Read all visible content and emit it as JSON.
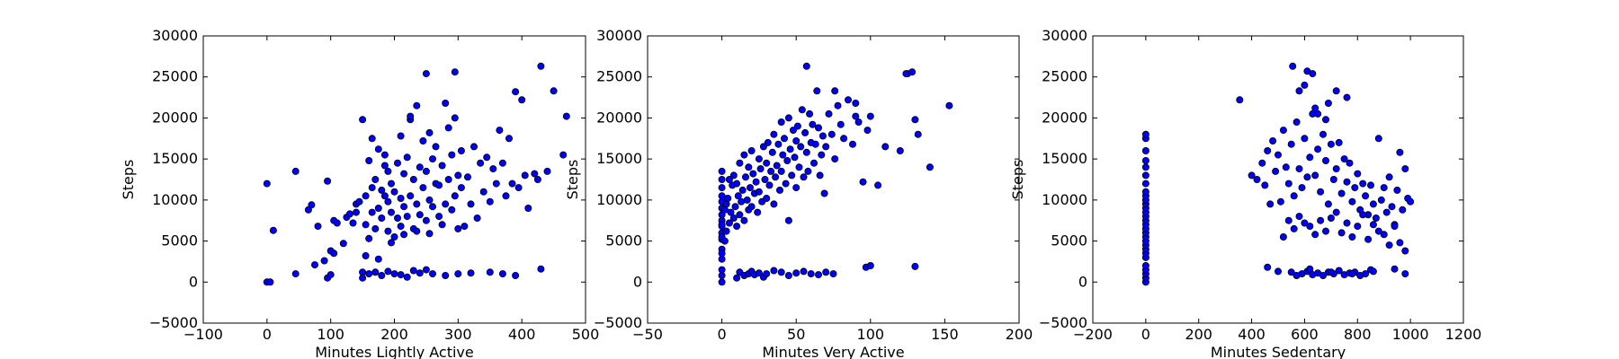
{
  "colors": {
    "marker_fill": "#0000ff",
    "marker_edge": "#000000",
    "background": "#ffffff",
    "axes": "#000000"
  },
  "chart_data": [
    {
      "type": "scatter",
      "xlabel": "Minutes Lightly Active",
      "ylabel": "Steps",
      "xlim": [
        -100,
        500
      ],
      "ylim": [
        -5000,
        30000
      ],
      "xticks": [
        -100,
        0,
        100,
        200,
        300,
        400,
        500
      ],
      "yticks": [
        -5000,
        0,
        5000,
        10000,
        15000,
        20000,
        25000,
        30000
      ],
      "grid": false,
      "x": [
        0,
        0,
        5,
        10,
        45,
        45,
        65,
        70,
        75,
        80,
        90,
        95,
        95,
        100,
        100,
        105,
        105,
        110,
        120,
        125,
        130,
        135,
        140,
        140,
        145,
        150,
        150,
        155,
        155,
        160,
        160,
        165,
        165,
        165,
        170,
        170,
        175,
        175,
        180,
        180,
        185,
        185,
        190,
        190,
        190,
        195,
        195,
        200,
        200,
        205,
        205,
        210,
        210,
        210,
        215,
        215,
        220,
        220,
        225,
        225,
        230,
        230,
        235,
        235,
        240,
        240,
        245,
        245,
        250,
        250,
        255,
        255,
        260,
        260,
        265,
        265,
        270,
        270,
        275,
        275,
        280,
        280,
        285,
        285,
        290,
        290,
        295,
        295,
        300,
        300,
        305,
        305,
        310,
        315,
        320,
        325,
        330,
        335,
        340,
        345,
        350,
        355,
        360,
        365,
        370,
        375,
        380,
        385,
        390,
        395,
        400,
        405,
        410,
        420,
        425,
        430,
        440,
        450,
        465,
        470,
        150,
        160,
        170,
        180,
        190,
        200,
        210,
        220,
        230,
        240,
        250,
        260,
        280,
        300,
        320,
        350,
        370,
        390,
        430,
        250,
        295,
        225,
        185,
        155,
        175,
        195,
        215,
        235,
        255
      ],
      "y": [
        0,
        12000,
        0,
        6300,
        1000,
        13500,
        8800,
        9400,
        2100,
        6800,
        2600,
        500,
        12300,
        3800,
        900,
        7500,
        3500,
        7200,
        4700,
        7900,
        8300,
        7200,
        8500,
        9500,
        9800,
        1200,
        19800,
        7000,
        10500,
        5300,
        14800,
        8500,
        11500,
        17500,
        6500,
        12500,
        9000,
        16200,
        7800,
        11200,
        10500,
        15500,
        6200,
        9800,
        13500,
        8500,
        12000,
        5500,
        11000,
        7800,
        14500,
        6800,
        10200,
        17800,
        9200,
        13200,
        8000,
        15200,
        10500,
        19800,
        6500,
        12500,
        9500,
        21500,
        8200,
        14000,
        11500,
        17200,
        7500,
        13500,
        10000,
        18200,
        9200,
        15000,
        12000,
        16500,
        8000,
        11800,
        7000,
        14200,
        9500,
        21800,
        12500,
        18800,
        8800,
        15500,
        10500,
        20000,
        6500,
        13000,
        11500,
        16000,
        6800,
        12800,
        9500,
        16500,
        7800,
        14500,
        11000,
        15200,
        9800,
        13800,
        12000,
        18500,
        14500,
        10500,
        17500,
        12000,
        23200,
        11500,
        22200,
        13000,
        9000,
        13200,
        12500,
        26300,
        13500,
        23300,
        15500,
        20200,
        500,
        1000,
        1200,
        800,
        1300,
        1000,
        900,
        600,
        1400,
        1100,
        1500,
        1000,
        800,
        1000,
        1100,
        1200,
        1000,
        800,
        1600,
        25400,
        25600,
        20200,
        14200,
        3200,
        2800,
        4800,
        5800,
        6200,
        5900
      ],
      "color": "#0000ff"
    },
    {
      "type": "scatter",
      "xlabel": "Minutes Very Active",
      "ylabel": "Steps",
      "xlim": [
        -50,
        200
      ],
      "ylim": [
        -5000,
        30000
      ],
      "xticks": [
        -50,
        0,
        50,
        100,
        150,
        200
      ],
      "yticks": [
        -5000,
        0,
        5000,
        10000,
        15000,
        20000,
        25000,
        30000
      ],
      "grid": false,
      "x": [
        0,
        0,
        0,
        0,
        0,
        0,
        0,
        0,
        0,
        0,
        0,
        0,
        0,
        0,
        0,
        0,
        0,
        0,
        0,
        2,
        2,
        3,
        3,
        4,
        5,
        5,
        6,
        7,
        8,
        8,
        9,
        10,
        10,
        11,
        12,
        12,
        13,
        14,
        15,
        15,
        16,
        17,
        18,
        18,
        19,
        20,
        20,
        21,
        22,
        23,
        24,
        25,
        25,
        26,
        27,
        28,
        29,
        30,
        30,
        31,
        32,
        33,
        34,
        35,
        35,
        36,
        37,
        38,
        39,
        40,
        40,
        41,
        42,
        43,
        44,
        45,
        45,
        46,
        47,
        48,
        49,
        50,
        50,
        51,
        52,
        53,
        54,
        55,
        56,
        57,
        58,
        59,
        60,
        61,
        62,
        63,
        64,
        65,
        66,
        67,
        68,
        69,
        70,
        72,
        74,
        76,
        78,
        80,
        82,
        85,
        88,
        90,
        92,
        95,
        98,
        100,
        105,
        110,
        120,
        125,
        130,
        132,
        140,
        153,
        10,
        12,
        15,
        18,
        20,
        22,
        25,
        28,
        30,
        35,
        40,
        45,
        50,
        55,
        60,
        65,
        70,
        75,
        97,
        100,
        130,
        57,
        76,
        90,
        124,
        128
      ],
      "y": [
        0,
        800,
        1500,
        2800,
        4000,
        5200,
        6000,
        6800,
        7500,
        8200,
        9000,
        9800,
        10500,
        11500,
        12500,
        13500,
        3500,
        5500,
        7000,
        5000,
        8800,
        6200,
        9500,
        10200,
        7200,
        12500,
        8500,
        11800,
        7800,
        13000,
        9200,
        6800,
        12000,
        10500,
        8200,
        14500,
        9800,
        11200,
        7500,
        15500,
        12800,
        10000,
        8800,
        14000,
        11500,
        9200,
        16000,
        13200,
        10800,
        12200,
        8500,
        15000,
        11000,
        13800,
        9800,
        16500,
        12500,
        10200,
        14500,
        17000,
        11800,
        13500,
        15800,
        9500,
        18000,
        12800,
        14200,
        16800,
        11200,
        19500,
        13500,
        15500,
        17500,
        12000,
        14800,
        7500,
        20000,
        16200,
        13000,
        18500,
        15200,
        11500,
        17200,
        19000,
        14000,
        16500,
        21000,
        12800,
        18200,
        15800,
        13500,
        20500,
        17000,
        19200,
        14500,
        16800,
        23300,
        18800,
        13000,
        15500,
        17800,
        10800,
        16500,
        20500,
        18000,
        15000,
        21500,
        19200,
        17500,
        22200,
        16800,
        21800,
        19500,
        12200,
        18500,
        20200,
        11800,
        16500,
        16000,
        25400,
        19800,
        18000,
        14000,
        21500,
        500,
        1200,
        800,
        1000,
        1300,
        900,
        1100,
        600,
        1000,
        1400,
        1200,
        800,
        1100,
        1300,
        1000,
        900,
        1200,
        1000,
        1800,
        2000,
        1900,
        26300,
        23300,
        20200,
        25400,
        25600
      ],
      "color": "#0000ff"
    },
    {
      "type": "scatter",
      "xlabel": "Minutes Sedentary",
      "ylabel": "Steps",
      "xlim": [
        -200,
        1200
      ],
      "ylim": [
        -5000,
        30000
      ],
      "xticks": [
        -200,
        0,
        200,
        400,
        600,
        800,
        1000,
        1200
      ],
      "yticks": [
        -5000,
        0,
        5000,
        10000,
        15000,
        20000,
        25000,
        30000
      ],
      "grid": false,
      "x": [
        0,
        0,
        0,
        0,
        0,
        0,
        0,
        0,
        0,
        0,
        0,
        0,
        0,
        0,
        0,
        0,
        0,
        0,
        0,
        0,
        0,
        0,
        0,
        0,
        0,
        0,
        0,
        0,
        0,
        355,
        400,
        420,
        440,
        450,
        460,
        470,
        480,
        490,
        500,
        510,
        520,
        530,
        540,
        550,
        560,
        570,
        580,
        590,
        600,
        610,
        620,
        630,
        640,
        650,
        660,
        670,
        680,
        690,
        700,
        710,
        720,
        730,
        740,
        750,
        760,
        770,
        780,
        790,
        800,
        810,
        820,
        830,
        840,
        850,
        860,
        870,
        880,
        890,
        900,
        910,
        920,
        930,
        940,
        950,
        960,
        970,
        980,
        990,
        1000,
        520,
        540,
        560,
        580,
        600,
        620,
        640,
        660,
        680,
        700,
        720,
        740,
        760,
        780,
        800,
        820,
        840,
        860,
        880,
        900,
        920,
        940,
        960,
        980,
        550,
        570,
        590,
        610,
        630,
        650,
        670,
        690,
        710,
        730,
        750,
        770,
        790,
        810,
        830,
        850,
        460,
        500,
        620,
        700,
        780,
        860,
        940,
        980,
        555,
        610,
        630,
        690,
        720,
        760,
        650,
        580,
        600,
        640,
        680
      ],
      "y": [
        0,
        500,
        1000,
        1500,
        2000,
        3000,
        3500,
        4000,
        4500,
        5000,
        5500,
        6000,
        6500,
        7000,
        7500,
        8000,
        8500,
        9000,
        9500,
        10000,
        10500,
        11000,
        12000,
        13000,
        14000,
        14800,
        16000,
        17500,
        18000,
        22200,
        13000,
        12500,
        14500,
        11800,
        16000,
        9500,
        17200,
        13500,
        15500,
        9800,
        18500,
        14000,
        12000,
        16800,
        10500,
        19500,
        13800,
        11500,
        17500,
        12800,
        15200,
        20500,
        13000,
        16200,
        11000,
        18000,
        14800,
        9500,
        16800,
        12500,
        13800,
        17000,
        10800,
        15000,
        12200,
        14500,
        9800,
        11500,
        13200,
        8800,
        12000,
        10500,
        8200,
        11800,
        9500,
        7800,
        17500,
        10000,
        11500,
        8500,
        12800,
        9200,
        7000,
        11200,
        15800,
        8800,
        13800,
        10200,
        9800,
        5500,
        7500,
        6500,
        8000,
        7200,
        6800,
        5800,
        7500,
        6200,
        7800,
        8500,
        6000,
        7200,
        5500,
        6800,
        8200,
        5200,
        7000,
        6200,
        5800,
        4500,
        6800,
        4800,
        3800,
        1200,
        800,
        1000,
        1300,
        900,
        1100,
        800,
        1200,
        1000,
        1400,
        900,
        1100,
        1200,
        800,
        1000,
        1500,
        1800,
        1300,
        1600,
        1200,
        1000,
        1300,
        1600,
        1000,
        26300,
        25700,
        25400,
        21800,
        23300,
        22500,
        20500,
        23300,
        24000,
        21200,
        19800
      ],
      "color": "#0000ff"
    }
  ]
}
